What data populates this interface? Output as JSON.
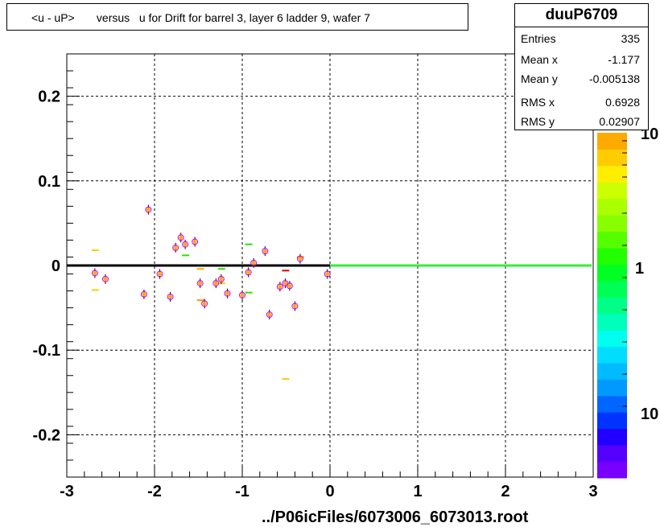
{
  "title": "<u - uP>       versus   u for Drift for barrel 3, layer 6 ladder 9, wafer 7",
  "stats": {
    "name": "duuP6709",
    "rows": [
      {
        "label": "Entries",
        "value": "335"
      },
      {
        "label": "Mean x",
        "value": "-1.177"
      },
      {
        "label": "Mean y",
        "value": "-0.005138"
      },
      {
        "label": "RMS x",
        "value": "0.6928"
      },
      {
        "label": "RMS y",
        "value": "0.02907"
      }
    ]
  },
  "footer": "../P06icFiles/6073006_6073013.root",
  "chart_data": {
    "type": "scatter",
    "title": "<u - uP>       versus   u for Drift for barrel 3, layer 6 ladder 9, wafer 7",
    "xlim": [
      -3,
      3
    ],
    "ylim": [
      -0.25,
      0.25
    ],
    "grid": true,
    "x_ticks": [
      "-3",
      "-2",
      "-1",
      "0",
      "1",
      "2",
      "3"
    ],
    "y_ticks": [
      "-0.2",
      "-0.1",
      "0",
      "0.1",
      "0.2"
    ],
    "profile_points": [
      {
        "x": -2.68,
        "y": -0.009
      },
      {
        "x": -2.56,
        "y": -0.016
      },
      {
        "x": -2.12,
        "y": -0.034
      },
      {
        "x": -2.07,
        "y": 0.066
      },
      {
        "x": -1.94,
        "y": -0.01
      },
      {
        "x": -1.82,
        "y": -0.037
      },
      {
        "x": -1.76,
        "y": 0.021
      },
      {
        "x": -1.7,
        "y": 0.033
      },
      {
        "x": -1.65,
        "y": 0.025
      },
      {
        "x": -1.54,
        "y": 0.028
      },
      {
        "x": -1.48,
        "y": -0.021
      },
      {
        "x": -1.43,
        "y": -0.045
      },
      {
        "x": -1.3,
        "y": -0.021
      },
      {
        "x": -1.24,
        "y": -0.016
      },
      {
        "x": -1.17,
        "y": -0.033
      },
      {
        "x": -1.0,
        "y": -0.035
      },
      {
        "x": -0.93,
        "y": -0.008
      },
      {
        "x": -0.87,
        "y": 0.003
      },
      {
        "x": -0.74,
        "y": 0.017
      },
      {
        "x": -0.69,
        "y": -0.058
      },
      {
        "x": -0.57,
        "y": -0.025
      },
      {
        "x": -0.51,
        "y": -0.021
      },
      {
        "x": -0.46,
        "y": -0.024
      },
      {
        "x": -0.4,
        "y": -0.048
      },
      {
        "x": -0.34,
        "y": 0.008
      },
      {
        "x": -0.03,
        "y": -0.01
      }
    ],
    "cells": [
      {
        "x": -2.68,
        "y": 0.018,
        "color": "#ffcc00"
      },
      {
        "x": -2.68,
        "y": -0.029,
        "color": "#ffcc00"
      },
      {
        "x": -1.65,
        "y": 0.012,
        "color": "#33dd00"
      },
      {
        "x": -1.48,
        "y": -0.004,
        "color": "#ffaa00"
      },
      {
        "x": -1.48,
        "y": -0.041,
        "color": "#ff9900"
      },
      {
        "x": -1.24,
        "y": -0.004,
        "color": "#33dd00"
      },
      {
        "x": -1.24,
        "y": -0.021,
        "color": "#ffcc00"
      },
      {
        "x": -0.93,
        "y": 0.025,
        "color": "#33dd00"
      },
      {
        "x": -0.93,
        "y": -0.032,
        "color": "#33dd00"
      },
      {
        "x": -0.51,
        "y": -0.006,
        "color": "#dd0000"
      },
      {
        "x": -0.51,
        "y": -0.134,
        "color": "#ffcc00"
      },
      {
        "x": -0.34,
        "y": 0.01,
        "color": "#ff9900"
      }
    ],
    "zero_line": {
      "black_range": [
        -3,
        0
      ],
      "green_range": [
        0,
        3
      ],
      "green_color": "#33ee33"
    },
    "palette_labels": [
      "10",
      "1",
      "10"
    ]
  }
}
